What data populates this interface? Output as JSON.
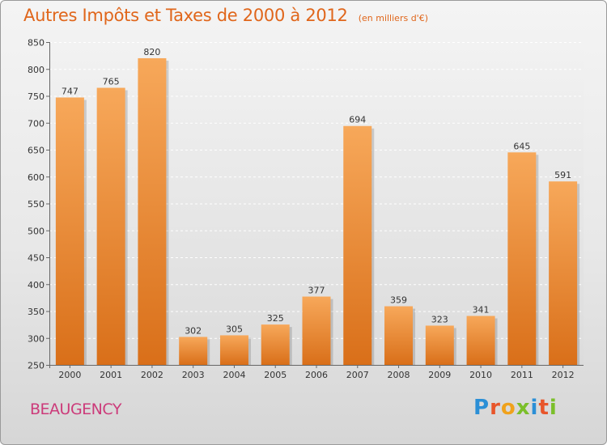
{
  "header": {
    "title": "Autres Impôts et Taxes de 2000 à 2012",
    "unit": "(en milliers d'€)"
  },
  "footer": {
    "commune": "BEAUGENCY",
    "logo_text": "Proxiti"
  },
  "colors": {
    "title": "#e0661b",
    "commune": "#cc3b7a",
    "bar_top": "#f7a85a",
    "bar_bottom": "#d96f19",
    "axis": "#666666"
  },
  "chart_data": {
    "type": "bar",
    "title": "Autres Impôts et Taxes de 2000 à 2012",
    "xlabel": "",
    "ylabel": "",
    "categories": [
      "2000",
      "2001",
      "2002",
      "2003",
      "2004",
      "2005",
      "2006",
      "2007",
      "2008",
      "2009",
      "2010",
      "2011",
      "2012"
    ],
    "values": [
      747,
      765,
      820,
      302,
      305,
      325,
      377,
      694,
      359,
      323,
      341,
      645,
      591
    ],
    "ylim": [
      250,
      850
    ],
    "yticks": [
      250,
      300,
      350,
      400,
      450,
      500,
      550,
      600,
      650,
      700,
      750,
      800,
      850
    ],
    "grid": true,
    "data_labels": true
  }
}
